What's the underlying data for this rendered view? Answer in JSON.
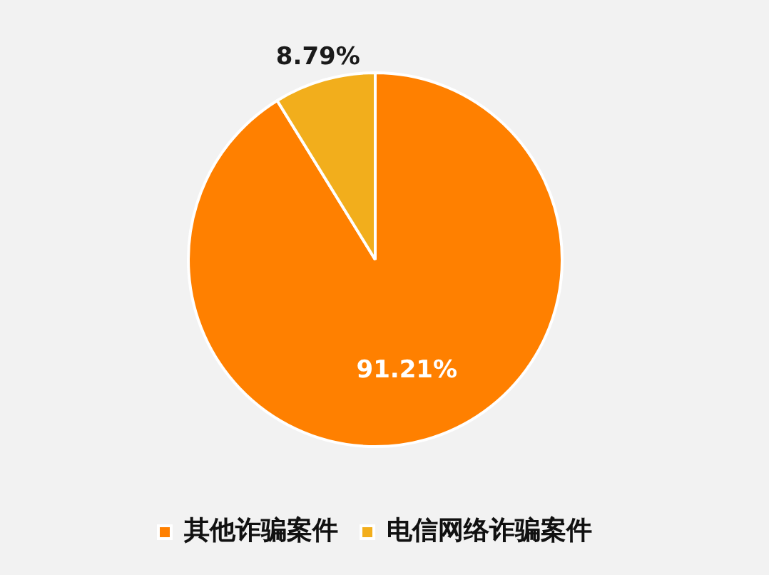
{
  "chart_data": {
    "type": "pie",
    "categories": [
      "其他诈骗案件",
      "电信网络诈骗案件"
    ],
    "values": [
      91.21,
      8.79
    ],
    "colors": [
      "#ff8000",
      "#f2ae1c"
    ],
    "value_labels": [
      "91.21%",
      "8.79%"
    ],
    "legend": "bottom"
  }
}
